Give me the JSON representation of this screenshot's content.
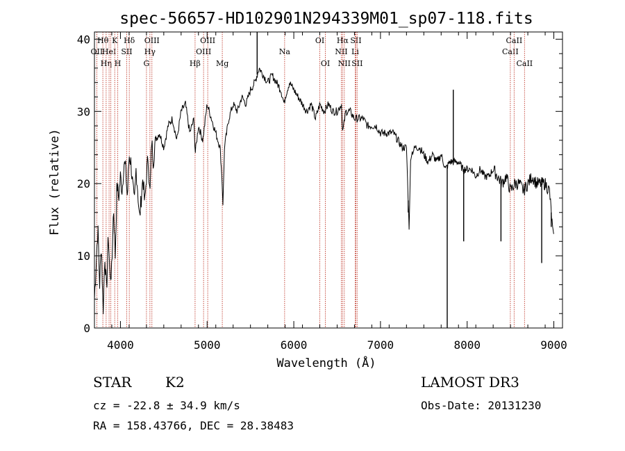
{
  "chart_data": {
    "type": "line",
    "title": "spec-56657-HD102901N294339M01_sp07-118.fits",
    "xlabel": "Wavelength (Å)",
    "ylabel": "Flux (relative)",
    "xlim": [
      3700,
      9100
    ],
    "ylim": [
      0,
      41
    ],
    "xticks": [
      4000,
      5000,
      6000,
      7000,
      8000,
      9000
    ],
    "yticks": [
      0,
      10,
      20,
      30,
      40
    ],
    "series": [
      {
        "name": "flux",
        "x": [
          3700,
          3720,
          3740,
          3760,
          3780,
          3800,
          3820,
          3840,
          3860,
          3880,
          3900,
          3920,
          3940,
          3960,
          3980,
          4000,
          4020,
          4040,
          4060,
          4080,
          4100,
          4120,
          4140,
          4160,
          4180,
          4200,
          4220,
          4240,
          4260,
          4280,
          4300,
          4320,
          4340,
          4360,
          4380,
          4400,
          4450,
          4500,
          4550,
          4600,
          4650,
          4700,
          4750,
          4800,
          4850,
          4861,
          4900,
          4950,
          5000,
          5050,
          5100,
          5150,
          5170,
          5183,
          5200,
          5250,
          5300,
          5350,
          5400,
          5450,
          5500,
          5550,
          5600,
          5650,
          5700,
          5750,
          5800,
          5850,
          5890,
          5900,
          5950,
          6000,
          6050,
          6100,
          6150,
          6200,
          6250,
          6300,
          6350,
          6400,
          6450,
          6500,
          6550,
          6563,
          6600,
          6650,
          6700,
          6750,
          6800,
          6850,
          6900,
          6950,
          7000,
          7050,
          7100,
          7150,
          7200,
          7250,
          7300,
          7330,
          7350,
          7400,
          7450,
          7500,
          7550,
          7600,
          7650,
          7700,
          7750,
          7800,
          7850,
          7900,
          7950,
          8000,
          8050,
          8100,
          8150,
          8200,
          8250,
          8300,
          8350,
          8400,
          8450,
          8500,
          8550,
          8600,
          8650,
          8700,
          8750,
          8800,
          8850,
          8900,
          8950,
          8990,
          9000
        ],
        "y": [
          4,
          9,
          14,
          6,
          12,
          2,
          10,
          5,
          13,
          7,
          8,
          17,
          10,
          20,
          18,
          21,
          19,
          23,
          22,
          18,
          24,
          23,
          20,
          17,
          22,
          19,
          15,
          18,
          21,
          17,
          21,
          24,
          18,
          26,
          23,
          26,
          27,
          25,
          28,
          29,
          26,
          30,
          31,
          27,
          29,
          24,
          28,
          26,
          31,
          29,
          27,
          25,
          21,
          17,
          25,
          29,
          31,
          30,
          32,
          31,
          33,
          34,
          36,
          35,
          34,
          35,
          34,
          33,
          31,
          32,
          34,
          33,
          32,
          31,
          30,
          31,
          29,
          31,
          30,
          31,
          30,
          30,
          31,
          27,
          30,
          30,
          29,
          29,
          29,
          28,
          28,
          28,
          27,
          27,
          27,
          27,
          26,
          25,
          25,
          14,
          24,
          25,
          25,
          24,
          23,
          24,
          23,
          24,
          22,
          23,
          23,
          23,
          22,
          22,
          22,
          21,
          22,
          21,
          21,
          22,
          21,
          20,
          21,
          19,
          20,
          20,
          19,
          20,
          21,
          20,
          20,
          20,
          19,
          13,
          12
        ]
      }
    ],
    "spikes": [
      {
        "x": 5577,
        "y": 41
      },
      {
        "x": 7770,
        "y": 0
      },
      {
        "x": 7840,
        "y": 33
      },
      {
        "x": 7320,
        "y": 16
      },
      {
        "x": 7960,
        "y": 12
      },
      {
        "x": 8390,
        "y": 12
      },
      {
        "x": 8860,
        "y": 9
      },
      {
        "x": 8970,
        "y": 14
      }
    ],
    "lines": [
      {
        "x": 3727,
        "label": "OII",
        "row": 1
      },
      {
        "x": 3797,
        "label": "Hθ",
        "row": 0
      },
      {
        "x": 3835,
        "label": "Hη",
        "row": 2
      },
      {
        "x": 3869,
        "label": "HeI",
        "row": 1
      },
      {
        "x": 3889,
        "label": "",
        "row": 0
      },
      {
        "x": 3934,
        "label": "K",
        "row": 0
      },
      {
        "x": 3969,
        "label": "H",
        "row": 2
      },
      {
        "x": 4072,
        "label": "SII",
        "row": 1
      },
      {
        "x": 4102,
        "label": "Hδ",
        "row": 0
      },
      {
        "x": 4300,
        "label": "G",
        "row": 2
      },
      {
        "x": 4340,
        "label": "Hγ",
        "row": 1
      },
      {
        "x": 4363,
        "label": "OIII",
        "row": 0
      },
      {
        "x": 4861,
        "label": "Hβ",
        "row": 2
      },
      {
        "x": 4959,
        "label": "OIII",
        "row": 1
      },
      {
        "x": 5007,
        "label": "OIII",
        "row": 0
      },
      {
        "x": 5175,
        "label": "Mg",
        "row": 2
      },
      {
        "x": 5894,
        "label": "Na",
        "row": 1
      },
      {
        "x": 6300,
        "label": "OI",
        "row": 0
      },
      {
        "x": 6364,
        "label": "OI",
        "row": 2
      },
      {
        "x": 6548,
        "label": "NII",
        "row": 1
      },
      {
        "x": 6563,
        "label": "Hα",
        "row": 0
      },
      {
        "x": 6583,
        "label": "NII",
        "row": 2
      },
      {
        "x": 6708,
        "label": "Li",
        "row": 1
      },
      {
        "x": 6716,
        "label": "SII",
        "row": 0
      },
      {
        "x": 6731,
        "label": "SII",
        "row": 2
      },
      {
        "x": 8498,
        "label": "CaII",
        "row": 1
      },
      {
        "x": 8542,
        "label": "CaII",
        "row": 0
      },
      {
        "x": 8662,
        "label": "CaII",
        "row": 2
      }
    ]
  },
  "info": {
    "object_class": "STAR",
    "subclass": "K2",
    "survey": "LAMOST DR3",
    "cz": "cz = -22.8 ± 34.9 km/s",
    "obs_date": "Obs-Date: 20131230",
    "coords": "RA = 158.43766, DEC =  28.38483"
  }
}
